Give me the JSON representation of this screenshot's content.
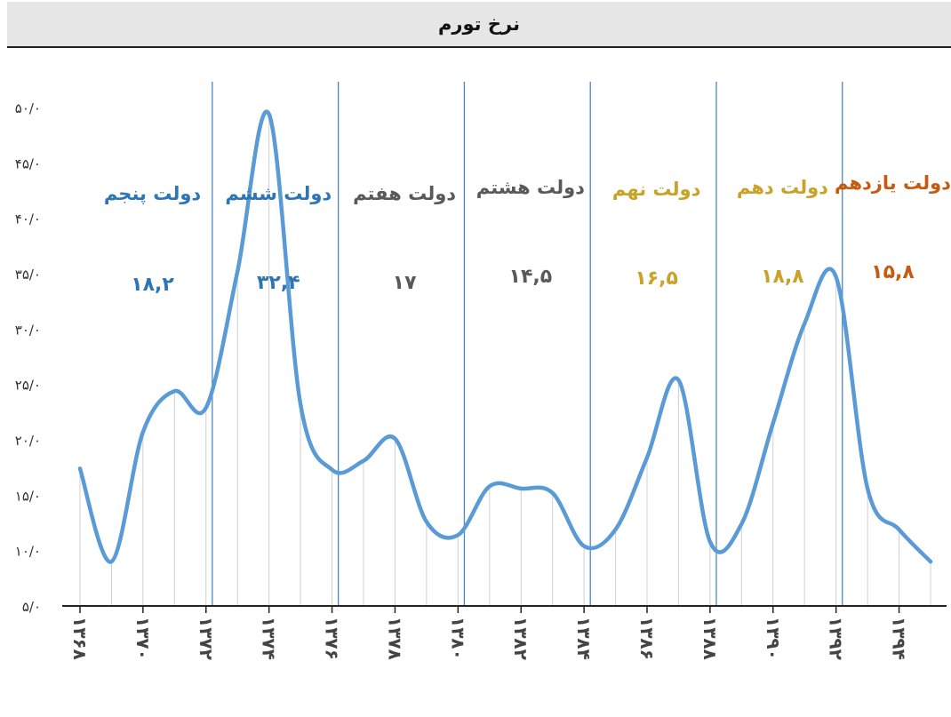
{
  "title": "نرخ تورم",
  "colors": {
    "line": "#5b9bd5",
    "divider": "#4a86c7",
    "blue_label": "#2e75b6",
    "gray_label": "#595959",
    "gold_label": "#c9a227",
    "orange_label": "#c55a11"
  },
  "governments": [
    {
      "name": "دولت پنجم",
      "value": "۱۸,۲",
      "color": "#2e75b6"
    },
    {
      "name": "دولت ششم",
      "value": "۳۲,۴",
      "color": "#2e75b6"
    },
    {
      "name": "دولت هفتم",
      "value": "۱۷",
      "color": "#595959"
    },
    {
      "name": "دولت هشتم",
      "value": "۱۴,۵",
      "color": "#595959"
    },
    {
      "name": "دولت نهم",
      "value": "۱۶,۵",
      "color": "#c9a227"
    },
    {
      "name": "دولت دهم",
      "value": "۱۸,۸",
      "color": "#c9a227"
    },
    {
      "name": "دولت یازدهم",
      "value": "۱۵,۸",
      "color": "#c55a11"
    }
  ],
  "chart_data": {
    "type": "line",
    "title": "نرخ تورم",
    "y_tick_labels": [
      "۵/۰",
      "۱۰/۰",
      "۱۵/۰",
      "۲۰/۰",
      "۲۵/۰",
      "۳۰/۰",
      "۳۵/۰",
      "۴۰/۰",
      "۴۵/۰",
      "۵۰/۰"
    ],
    "y_tick_values": [
      5,
      10,
      15,
      20,
      25,
      30,
      35,
      40,
      45,
      50
    ],
    "ylim": [
      5,
      50
    ],
    "x": [
      1368,
      1369,
      1370,
      1371,
      1372,
      1373,
      1374,
      1375,
      1376,
      1377,
      1378,
      1379,
      1380,
      1381,
      1382,
      1383,
      1384,
      1385,
      1386,
      1387,
      1388,
      1389,
      1390,
      1391,
      1392,
      1393,
      1394,
      1395
    ],
    "x_tick_labels": [
      {
        "x": 1368,
        "label": "۱۳۶۸"
      },
      {
        "x": 1370,
        "label": "۱۳۷۰"
      },
      {
        "x": 1372,
        "label": "۱۳۷۲"
      },
      {
        "x": 1374,
        "label": "۱۳۷۴"
      },
      {
        "x": 1376,
        "label": "۱۳۷۶"
      },
      {
        "x": 1378,
        "label": "۱۳۷۸"
      },
      {
        "x": 1380,
        "label": "۱۳۸۰"
      },
      {
        "x": 1382,
        "label": "۱۳۸۲"
      },
      {
        "x": 1384,
        "label": "۱۳۸۴"
      },
      {
        "x": 1386,
        "label": "۱۳۸۶"
      },
      {
        "x": 1388,
        "label": "۱۳۸۸"
      },
      {
        "x": 1390,
        "label": "۱۳۹۰"
      },
      {
        "x": 1392,
        "label": "۱۳۹۲"
      },
      {
        "x": 1394,
        "label": "۱۳۹۴"
      }
    ],
    "series": [
      {
        "values": [
          17.4,
          9.0,
          20.7,
          24.4,
          22.9,
          35.2,
          49.4,
          23.2,
          17.3,
          18.1,
          20.1,
          12.6,
          11.4,
          15.8,
          15.6,
          15.2,
          10.4,
          11.9,
          18.4,
          25.4,
          10.8,
          12.4,
          21.5,
          30.5,
          34.7,
          15.6,
          11.9,
          9.0
        ]
      }
    ],
    "government_boundaries": [
      1372.2,
      1376.2,
      1380.2,
      1384.2,
      1388.2,
      1392.2
    ],
    "grid_vertical": true
  }
}
